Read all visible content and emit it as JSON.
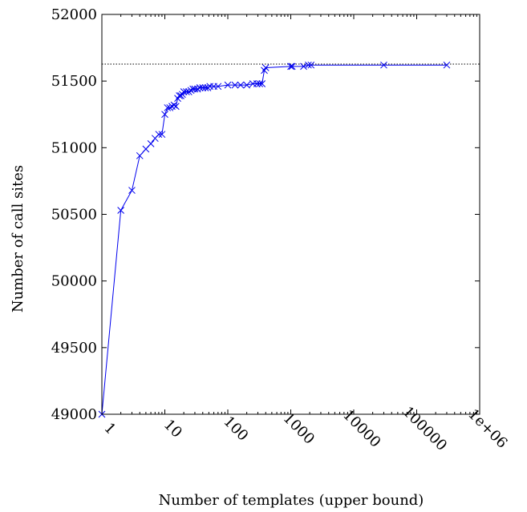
{
  "chart_data": {
    "type": "line",
    "xlabel": "Number of templates (upper bound)",
    "ylabel": "Number of call sites",
    "x_scale": "log",
    "xlim": [
      1,
      1000000
    ],
    "ylim": [
      49000,
      52000
    ],
    "x_ticks": [
      {
        "value": 1,
        "label": "1"
      },
      {
        "value": 10,
        "label": "10"
      },
      {
        "value": 100,
        "label": "100"
      },
      {
        "value": 1000,
        "label": "1000"
      },
      {
        "value": 10000,
        "label": "10000"
      },
      {
        "value": 100000,
        "label": "100000"
      },
      {
        "value": 1000000,
        "label": "1e+06"
      }
    ],
    "y_ticks": [
      {
        "value": 49000,
        "label": "49000"
      },
      {
        "value": 49500,
        "label": "49500"
      },
      {
        "value": 50000,
        "label": "50000"
      },
      {
        "value": 50500,
        "label": "50500"
      },
      {
        "value": 51000,
        "label": "51000"
      },
      {
        "value": 51500,
        "label": "51500"
      },
      {
        "value": 52000,
        "label": "52000"
      }
    ],
    "reference_line": {
      "y": 51627,
      "style": "dotted",
      "color": "#000000"
    },
    "series": [
      {
        "color": "#0000ee",
        "marker": "x",
        "x": [
          1,
          2,
          3,
          4,
          5,
          6,
          7,
          8,
          9,
          10,
          11,
          12,
          13,
          14,
          15,
          16,
          17,
          18,
          19,
          20,
          22,
          24,
          26,
          28,
          30,
          33,
          36,
          40,
          44,
          48,
          52,
          60,
          70,
          100,
          130,
          160,
          200,
          250,
          290,
          320,
          350,
          380,
          400,
          1000,
          1050,
          1600,
          1900,
          2100,
          30000,
          300000
        ],
        "y": [
          49000,
          50530,
          50680,
          50940,
          50990,
          51030,
          51070,
          51100,
          51100,
          51250,
          51300,
          51300,
          51310,
          51320,
          51310,
          51370,
          51390,
          51390,
          51400,
          51420,
          51420,
          51420,
          51430,
          51440,
          51440,
          51440,
          51450,
          51450,
          51450,
          51450,
          51460,
          51460,
          51460,
          51470,
          51470,
          51470,
          51470,
          51480,
          51480,
          51480,
          51480,
          51580,
          51600,
          51610,
          51610,
          51610,
          51620,
          51620,
          51620,
          51620
        ]
      }
    ]
  }
}
